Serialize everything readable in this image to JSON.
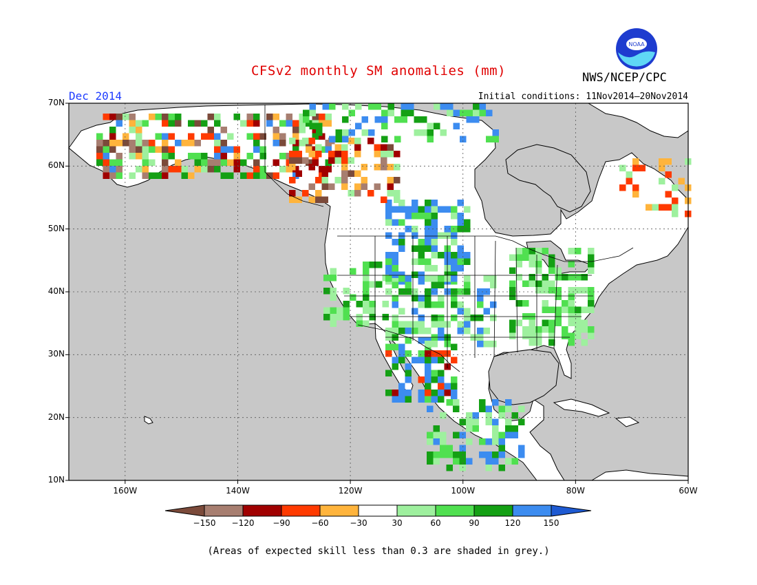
{
  "header": {
    "title": "CFSv2 monthly SM anomalies (mm)",
    "agency": "NWS/NCEP/CPC",
    "logo_text": "NOAA",
    "month": "Dec 2014",
    "initial_conditions": "Initial conditions: 11Nov2014—20Nov2014"
  },
  "map": {
    "lon_range": [
      -170,
      -60
    ],
    "lat_range": [
      10,
      70
    ],
    "lat_labels": [
      "70N",
      "60N",
      "50N",
      "40N",
      "30N",
      "20N",
      "10N"
    ],
    "lon_labels": [
      "160W",
      "140W",
      "120W",
      "100W",
      "80W",
      "60W"
    ],
    "colors": {
      "ocean": "#c8c8c8",
      "land": "#ffffff",
      "skill_mask": "#c8c8c8"
    }
  },
  "colorbar": {
    "labels": [
      "−150",
      "−120",
      "−90",
      "−60",
      "−30",
      "30",
      "60",
      "90",
      "120",
      "150"
    ],
    "colors": [
      "#7b4a3a",
      "#a77e70",
      "#a00000",
      "#ff3a00",
      "#ffb43c",
      "#ffffff",
      "#9ef09e",
      "#50e050",
      "#14a014",
      "#3c8cf0",
      "#1e5ad2"
    ]
  },
  "footnote": "(Areas of expected skill less than 0.3 are shaded in grey.)"
}
